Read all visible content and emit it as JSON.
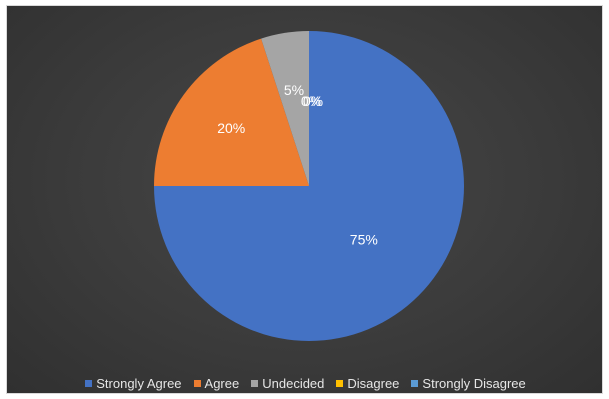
{
  "chart_data": {
    "type": "pie",
    "categories": [
      "Strongly Agree",
      "Agree",
      "Undecided",
      "Disagree",
      "Strongly Disagree"
    ],
    "values": [
      75,
      20,
      5,
      0,
      0
    ],
    "data_labels": [
      "75%",
      "20%",
      "5%",
      "0%",
      "0%"
    ],
    "colors": [
      "#4472c4",
      "#ed7d31",
      "#a5a5a5",
      "#ffc000",
      "#5b9bd5"
    ],
    "legend_position": "bottom",
    "background": "#3b3b3b"
  }
}
